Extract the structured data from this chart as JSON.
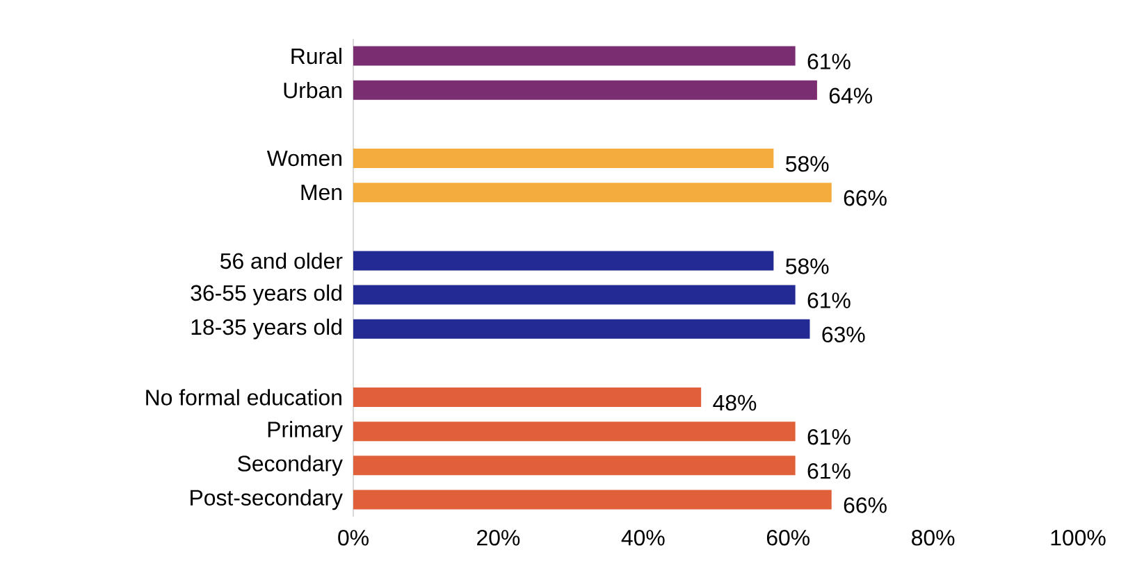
{
  "chart_data": {
    "type": "bar",
    "orientation": "horizontal",
    "categories": [
      "Rural",
      "Urban",
      null,
      "Women",
      "Men",
      null,
      "56 and older",
      "36-55 years old",
      "18-35 years old",
      null,
      "No formal education",
      "Primary",
      "Secondary",
      "Post-secondary"
    ],
    "values": [
      61,
      64,
      null,
      58,
      66,
      null,
      58,
      61,
      63,
      null,
      48,
      61,
      61,
      66
    ],
    "colors": [
      "#7b2d72",
      "#7b2d72",
      null,
      "#f4ad3d",
      "#f4ad3d",
      null,
      "#232a93",
      "#232a93",
      "#232a93",
      null,
      "#e0603a",
      "#e0603a",
      "#e0603a",
      "#e0603a"
    ],
    "value_labels": [
      "61%",
      "64%",
      null,
      "58%",
      "66%",
      null,
      "58%",
      "61%",
      "63%",
      null,
      "48%",
      "61%",
      "61%",
      "66%"
    ],
    "xlim": [
      0,
      100
    ],
    "xticks": [
      {
        "value": 0,
        "label": "0%"
      },
      {
        "value": 20,
        "label": "20%"
      },
      {
        "value": 40,
        "label": "40%"
      },
      {
        "value": 60,
        "label": "60%"
      },
      {
        "value": 80,
        "label": "80%"
      },
      {
        "value": 100,
        "label": "100%"
      }
    ],
    "grid": false
  }
}
